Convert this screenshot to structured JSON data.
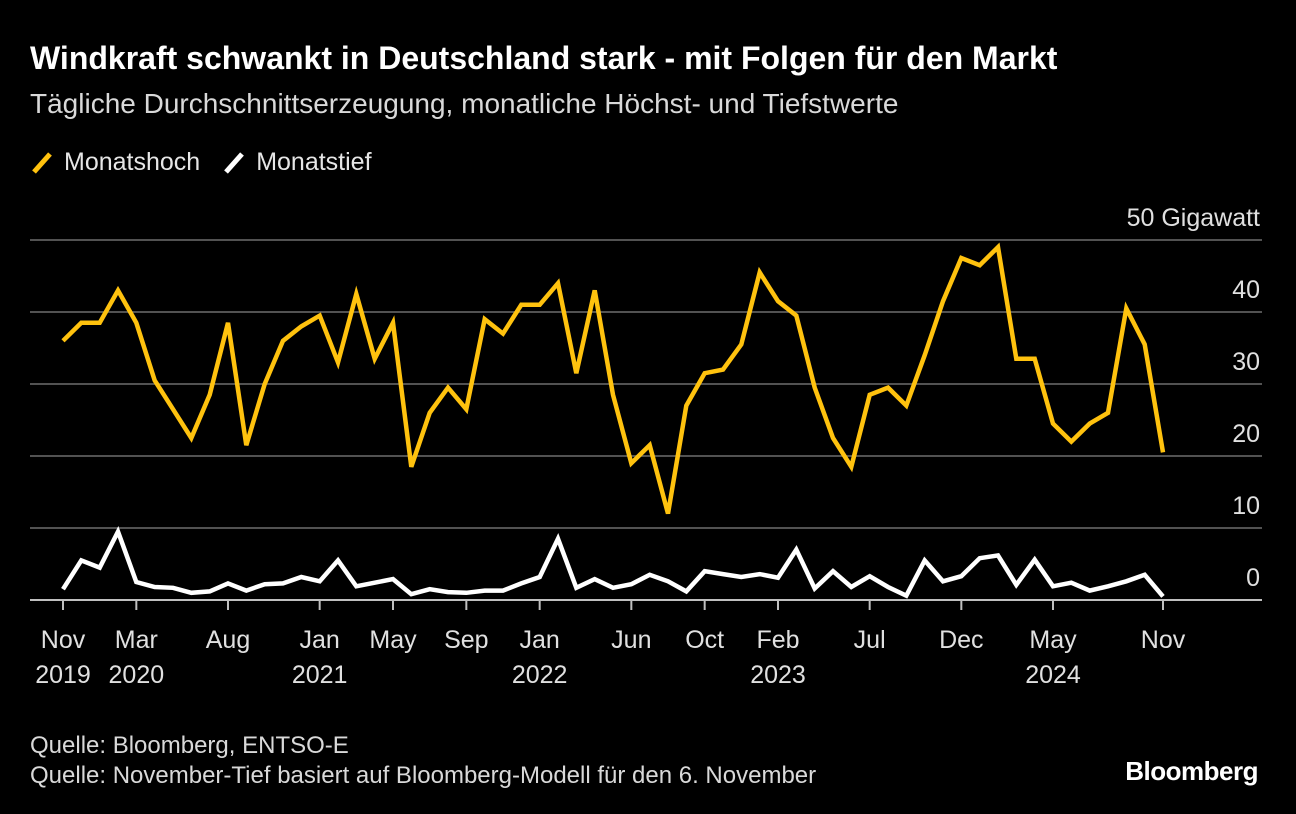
{
  "title": "Windkraft schwankt in Deutschland stark - mit Folgen für den Markt",
  "subtitle": "Tägliche Durchschnittserzeugung, monatliche Höchst- und Tiefstwerte",
  "legend": [
    {
      "label": "Monatshoch",
      "color": "#FFC20E"
    },
    {
      "label": "Monatstief",
      "color": "#FFFFFF"
    }
  ],
  "source_lines": [
    "Quelle: Bloomberg, ENTSO-E",
    "Quelle: November-Tief basiert auf Bloomberg-Modell für den 6. November"
  ],
  "brand": "Bloomberg",
  "chart_data": {
    "type": "line",
    "unit_label": "50 Gigawatt",
    "ylim": [
      0,
      50
    ],
    "yticks": [
      {
        "value": 0,
        "label": "0"
      },
      {
        "value": 10,
        "label": "10"
      },
      {
        "value": 20,
        "label": "20"
      },
      {
        "value": 30,
        "label": "30"
      },
      {
        "value": 40,
        "label": "40"
      },
      {
        "value": 50,
        "label": "50 Gigawatt"
      }
    ],
    "grid": true,
    "x": [
      "2019-11",
      "2019-12",
      "2020-01",
      "2020-02",
      "2020-03",
      "2020-04",
      "2020-05",
      "2020-06",
      "2020-07",
      "2020-08",
      "2020-09",
      "2020-10",
      "2020-11",
      "2020-12",
      "2021-01",
      "2021-02",
      "2021-03",
      "2021-04",
      "2021-05",
      "2021-06",
      "2021-07",
      "2021-08",
      "2021-09",
      "2021-10",
      "2021-11",
      "2021-12",
      "2022-01",
      "2022-02",
      "2022-03",
      "2022-04",
      "2022-05",
      "2022-06",
      "2022-07",
      "2022-08",
      "2022-09",
      "2022-10",
      "2022-11",
      "2022-12",
      "2023-01",
      "2023-02",
      "2023-03",
      "2023-04",
      "2023-05",
      "2023-06",
      "2023-07",
      "2023-08",
      "2023-09",
      "2023-10",
      "2023-11",
      "2023-12",
      "2024-01",
      "2024-02",
      "2024-03",
      "2024-04",
      "2024-05",
      "2024-06",
      "2024-07",
      "2024-08",
      "2024-09",
      "2024-10",
      "2024-11"
    ],
    "xticks": [
      {
        "index": 0,
        "lines": [
          "Nov",
          "2019"
        ]
      },
      {
        "index": 4,
        "lines": [
          "Mar",
          "2020"
        ]
      },
      {
        "index": 9,
        "lines": [
          "Aug",
          ""
        ]
      },
      {
        "index": 14,
        "lines": [
          "Jan",
          "2021"
        ]
      },
      {
        "index": 18,
        "lines": [
          "May",
          ""
        ]
      },
      {
        "index": 22,
        "lines": [
          "Sep",
          ""
        ]
      },
      {
        "index": 26,
        "lines": [
          "Jan",
          "2022"
        ]
      },
      {
        "index": 31,
        "lines": [
          "Jun",
          ""
        ]
      },
      {
        "index": 35,
        "lines": [
          "Oct",
          ""
        ]
      },
      {
        "index": 39,
        "lines": [
          "Feb",
          "2023"
        ]
      },
      {
        "index": 44,
        "lines": [
          "Jul",
          ""
        ]
      },
      {
        "index": 49,
        "lines": [
          "Dec",
          ""
        ]
      },
      {
        "index": 54,
        "lines": [
          "May",
          "2024"
        ]
      },
      {
        "index": 60,
        "lines": [
          "Nov",
          ""
        ]
      }
    ],
    "series": [
      {
        "name": "Monatshoch",
        "color": "#FFC20E",
        "values": [
          36.0,
          38.5,
          38.5,
          43.0,
          38.5,
          30.5,
          26.5,
          22.5,
          28.5,
          38.5,
          21.5,
          30.0,
          36.0,
          38.0,
          39.5,
          33.0,
          42.5,
          33.5,
          38.5,
          18.5,
          26.0,
          29.5,
          26.5,
          39.0,
          37.0,
          41.0,
          41.0,
          44.0,
          31.5,
          43.0,
          28.5,
          19.0,
          21.5,
          12.0,
          27.0,
          31.5,
          32.0,
          35.5,
          45.5,
          41.5,
          39.5,
          29.5,
          22.5,
          18.5,
          28.5,
          29.5,
          27.0,
          34.0,
          41.5,
          47.5,
          46.5,
          49.0,
          33.5,
          33.5,
          24.5,
          22.0,
          24.5,
          26.0,
          40.5,
          35.5,
          20.5
        ]
      },
      {
        "name": "Monatstief",
        "color": "#FFFFFF",
        "values": [
          1.5,
          5.5,
          4.5,
          9.5,
          2.5,
          1.8,
          1.7,
          1.0,
          1.2,
          2.3,
          1.3,
          2.2,
          2.3,
          3.2,
          2.6,
          5.5,
          1.9,
          2.4,
          2.9,
          0.8,
          1.5,
          1.1,
          1.0,
          1.3,
          1.3,
          2.3,
          3.2,
          8.5,
          1.7,
          2.9,
          1.7,
          2.2,
          3.5,
          2.6,
          1.2,
          4.0,
          3.6,
          3.2,
          3.6,
          3.1,
          7.0,
          1.6,
          4.0,
          1.8,
          3.3,
          1.8,
          0.6,
          5.5,
          2.6,
          3.3,
          5.8,
          6.2,
          2.1,
          5.6,
          1.9,
          2.4,
          1.3,
          1.9,
          2.6,
          3.5,
          0.5
        ]
      }
    ]
  }
}
